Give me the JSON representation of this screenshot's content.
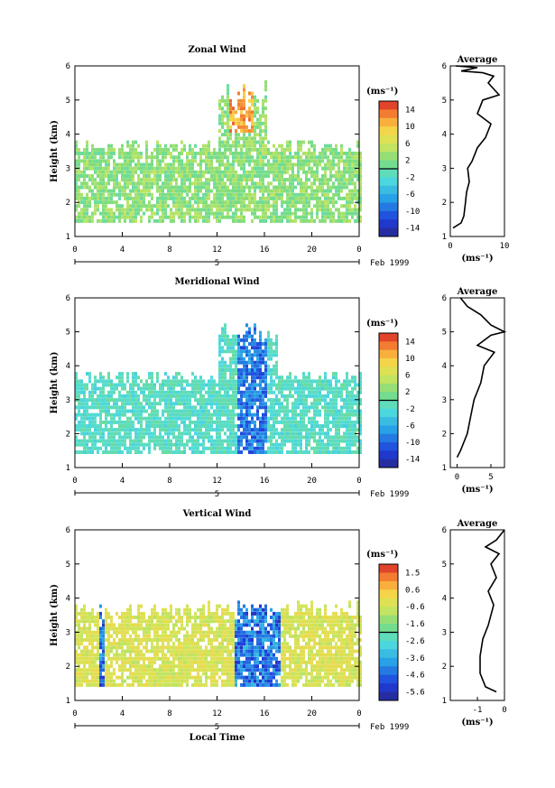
{
  "figure": {
    "date_label": "Feb 1999",
    "day_label": "5",
    "xlabel": "Local Time",
    "unit_label": "(ms⁻¹)",
    "ylabel": "Height (km)",
    "avg_title": "Average"
  },
  "chart_data": [
    {
      "id": "zonal",
      "type": "heatmap",
      "title": "Zonal Wind",
      "xlabel": "",
      "ylabel": "Height (km)",
      "x_ticks": [
        "0",
        "4",
        "8",
        "12",
        "16",
        "20",
        "0"
      ],
      "y_ticks": [
        "1",
        "2",
        "3",
        "4",
        "5",
        "6"
      ],
      "xlim": [
        0,
        24
      ],
      "ylim": [
        1,
        6
      ],
      "colorbar": {
        "unit": "(ms⁻¹)",
        "ticks": [
          "14",
          "10",
          "6",
          "2",
          "-2",
          "-6",
          "-10",
          "-14"
        ],
        "range": [
          -16,
          16
        ]
      },
      "average": {
        "title": "Average",
        "xlabel": "(ms⁻¹)",
        "x_ticks": [
          "0",
          "10"
        ],
        "xlim": [
          0,
          10
        ],
        "profile": [
          [
            0.5,
            1.25
          ],
          [
            2,
            1.4
          ],
          [
            2.5,
            1.6
          ],
          [
            2.8,
            2.0
          ],
          [
            3.0,
            2.3
          ],
          [
            3.5,
            2.6
          ],
          [
            3.2,
            3.0
          ],
          [
            4.0,
            3.2
          ],
          [
            5.0,
            3.6
          ],
          [
            6.5,
            3.9
          ],
          [
            7.5,
            4.3
          ],
          [
            5.0,
            4.6
          ],
          [
            6.0,
            5.0
          ],
          [
            9.0,
            5.15
          ],
          [
            7.0,
            5.5
          ],
          [
            8.0,
            5.7
          ],
          [
            6.0,
            5.8
          ],
          [
            2.0,
            5.85
          ],
          [
            5.0,
            5.95
          ],
          [
            1.0,
            6.0
          ]
        ]
      }
    },
    {
      "id": "meridional",
      "type": "heatmap",
      "title": "Meridional Wind",
      "xlabel": "",
      "ylabel": "Height (km)",
      "x_ticks": [
        "0",
        "4",
        "8",
        "12",
        "16",
        "20",
        "0"
      ],
      "y_ticks": [
        "1",
        "2",
        "3",
        "4",
        "5",
        "6"
      ],
      "xlim": [
        0,
        24
      ],
      "ylim": [
        1,
        6
      ],
      "colorbar": {
        "unit": "(ms⁻¹)",
        "ticks": [
          "14",
          "10",
          "6",
          "2",
          "-2",
          "-6",
          "-10",
          "-14"
        ],
        "range": [
          -16,
          16
        ]
      },
      "average": {
        "title": "Average",
        "xlabel": "(ms⁻¹)",
        "x_ticks": [
          "0",
          "5"
        ],
        "xlim": [
          -1,
          7
        ],
        "profile": [
          [
            0,
            1.3
          ],
          [
            0.5,
            1.5
          ],
          [
            1.5,
            2.0
          ],
          [
            2.0,
            2.5
          ],
          [
            2.5,
            3.0
          ],
          [
            3.5,
            3.5
          ],
          [
            4.0,
            4.0
          ],
          [
            5.5,
            4.4
          ],
          [
            3.0,
            4.6
          ],
          [
            5.0,
            4.9
          ],
          [
            7.0,
            5.0
          ],
          [
            5.0,
            5.2
          ],
          [
            3.5,
            5.5
          ],
          [
            1.5,
            5.75
          ],
          [
            0.5,
            6.0
          ]
        ]
      }
    },
    {
      "id": "vertical",
      "type": "heatmap",
      "title": "Vertical Wind",
      "xlabel": "Local Time",
      "ylabel": "Height (km)",
      "x_ticks": [
        "0",
        "4",
        "8",
        "12",
        "16",
        "20",
        "0"
      ],
      "y_ticks": [
        "1",
        "2",
        "3",
        "4",
        "5",
        "6"
      ],
      "xlim": [
        0,
        24
      ],
      "ylim": [
        1,
        6
      ],
      "colorbar": {
        "unit": "(ms⁻¹)",
        "ticks": [
          "1.5",
          "0.6",
          "-0.6",
          "-1.6",
          "-2.6",
          "-3.6",
          "-4.6",
          "-5.6"
        ],
        "range": [
          -6,
          2
        ]
      },
      "average": {
        "title": "Average",
        "xlabel": "(ms⁻¹)",
        "x_ticks": [
          "-1",
          "0"
        ],
        "xlim": [
          -2,
          0
        ],
        "profile": [
          [
            -0.3,
            1.25
          ],
          [
            -0.7,
            1.4
          ],
          [
            -0.9,
            1.8
          ],
          [
            -0.9,
            2.3
          ],
          [
            -0.8,
            2.8
          ],
          [
            -0.6,
            3.2
          ],
          [
            -0.4,
            3.8
          ],
          [
            -0.6,
            4.2
          ],
          [
            -0.3,
            4.6
          ],
          [
            -0.5,
            5.0
          ],
          [
            -0.2,
            5.3
          ],
          [
            -0.7,
            5.5
          ],
          [
            -0.3,
            5.7
          ],
          [
            0,
            6.0
          ]
        ]
      }
    }
  ]
}
